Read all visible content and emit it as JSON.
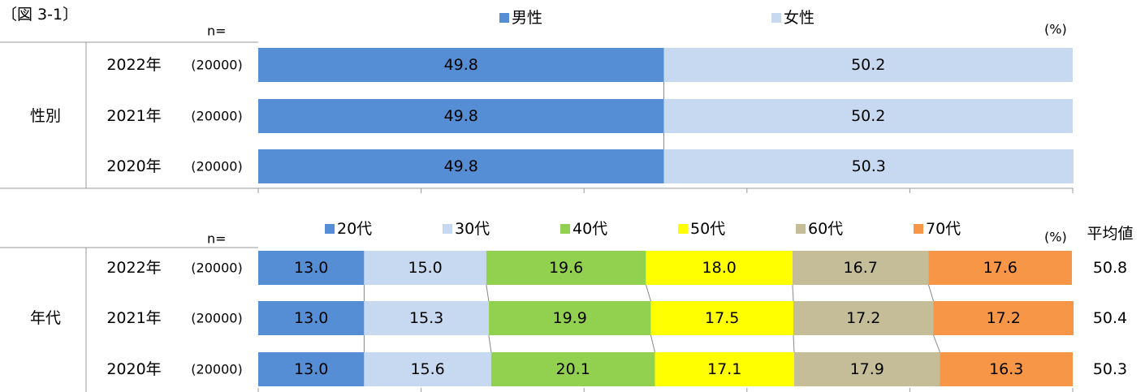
{
  "chart_data": [
    {
      "type": "bar",
      "orientation": "horizontal",
      "stacked": true,
      "title": "〔図 3-1〕",
      "group_label": "性別",
      "n_label": "n=",
      "unit_label": "(%)",
      "categories": [
        "2022年",
        "2021年",
        "2020年"
      ],
      "n": [
        "(20000)",
        "(20000)",
        "(20000)"
      ],
      "series": [
        {
          "name": "男性",
          "color": "#558ed5",
          "values": [
            49.8,
            49.8,
            49.8
          ]
        },
        {
          "name": "女性",
          "color": "#c6d9f1",
          "values": [
            50.2,
            50.2,
            50.3
          ]
        }
      ],
      "xlim": [
        0,
        100
      ],
      "xticks": [
        0,
        20,
        40,
        60,
        80,
        100
      ]
    },
    {
      "type": "bar",
      "orientation": "horizontal",
      "stacked": true,
      "group_label": "年代",
      "n_label": "n=",
      "unit_label": "(%)",
      "average_label": "平均値",
      "categories": [
        "2022年",
        "2021年",
        "2020年"
      ],
      "n": [
        "(20000)",
        "(20000)",
        "(20000)"
      ],
      "series": [
        {
          "name": "20代",
          "color": "#558ed5",
          "values": [
            13.0,
            13.0,
            13.0
          ],
          "value_labels": [
            "13.0",
            "13.0",
            "13.0"
          ]
        },
        {
          "name": "30代",
          "color": "#c6d9f1",
          "values": [
            15.0,
            15.3,
            15.6
          ],
          "value_labels": [
            "15.0",
            "15.3",
            "15.6"
          ]
        },
        {
          "name": "40代",
          "color": "#92d050",
          "values": [
            19.6,
            19.9,
            20.1
          ],
          "value_labels": [
            "19.6",
            "19.9",
            "20.1"
          ]
        },
        {
          "name": "50代",
          "color": "#ffff00",
          "values": [
            18.0,
            17.5,
            17.1
          ],
          "value_labels": [
            "18.0",
            "17.5",
            "17.1"
          ]
        },
        {
          "name": "60代",
          "color": "#c4bd97",
          "values": [
            16.7,
            17.2,
            17.9
          ],
          "value_labels": [
            "16.7",
            "17.2",
            "17.9"
          ]
        },
        {
          "name": "70代",
          "color": "#f79646",
          "values": [
            17.6,
            17.2,
            16.3
          ],
          "value_labels": [
            "17.6",
            "17.2",
            "16.3"
          ]
        }
      ],
      "averages": [
        50.8,
        50.4,
        50.3
      ],
      "xlim": [
        0,
        100
      ],
      "xticks": [
        0,
        20,
        40,
        60,
        80,
        100
      ]
    }
  ]
}
